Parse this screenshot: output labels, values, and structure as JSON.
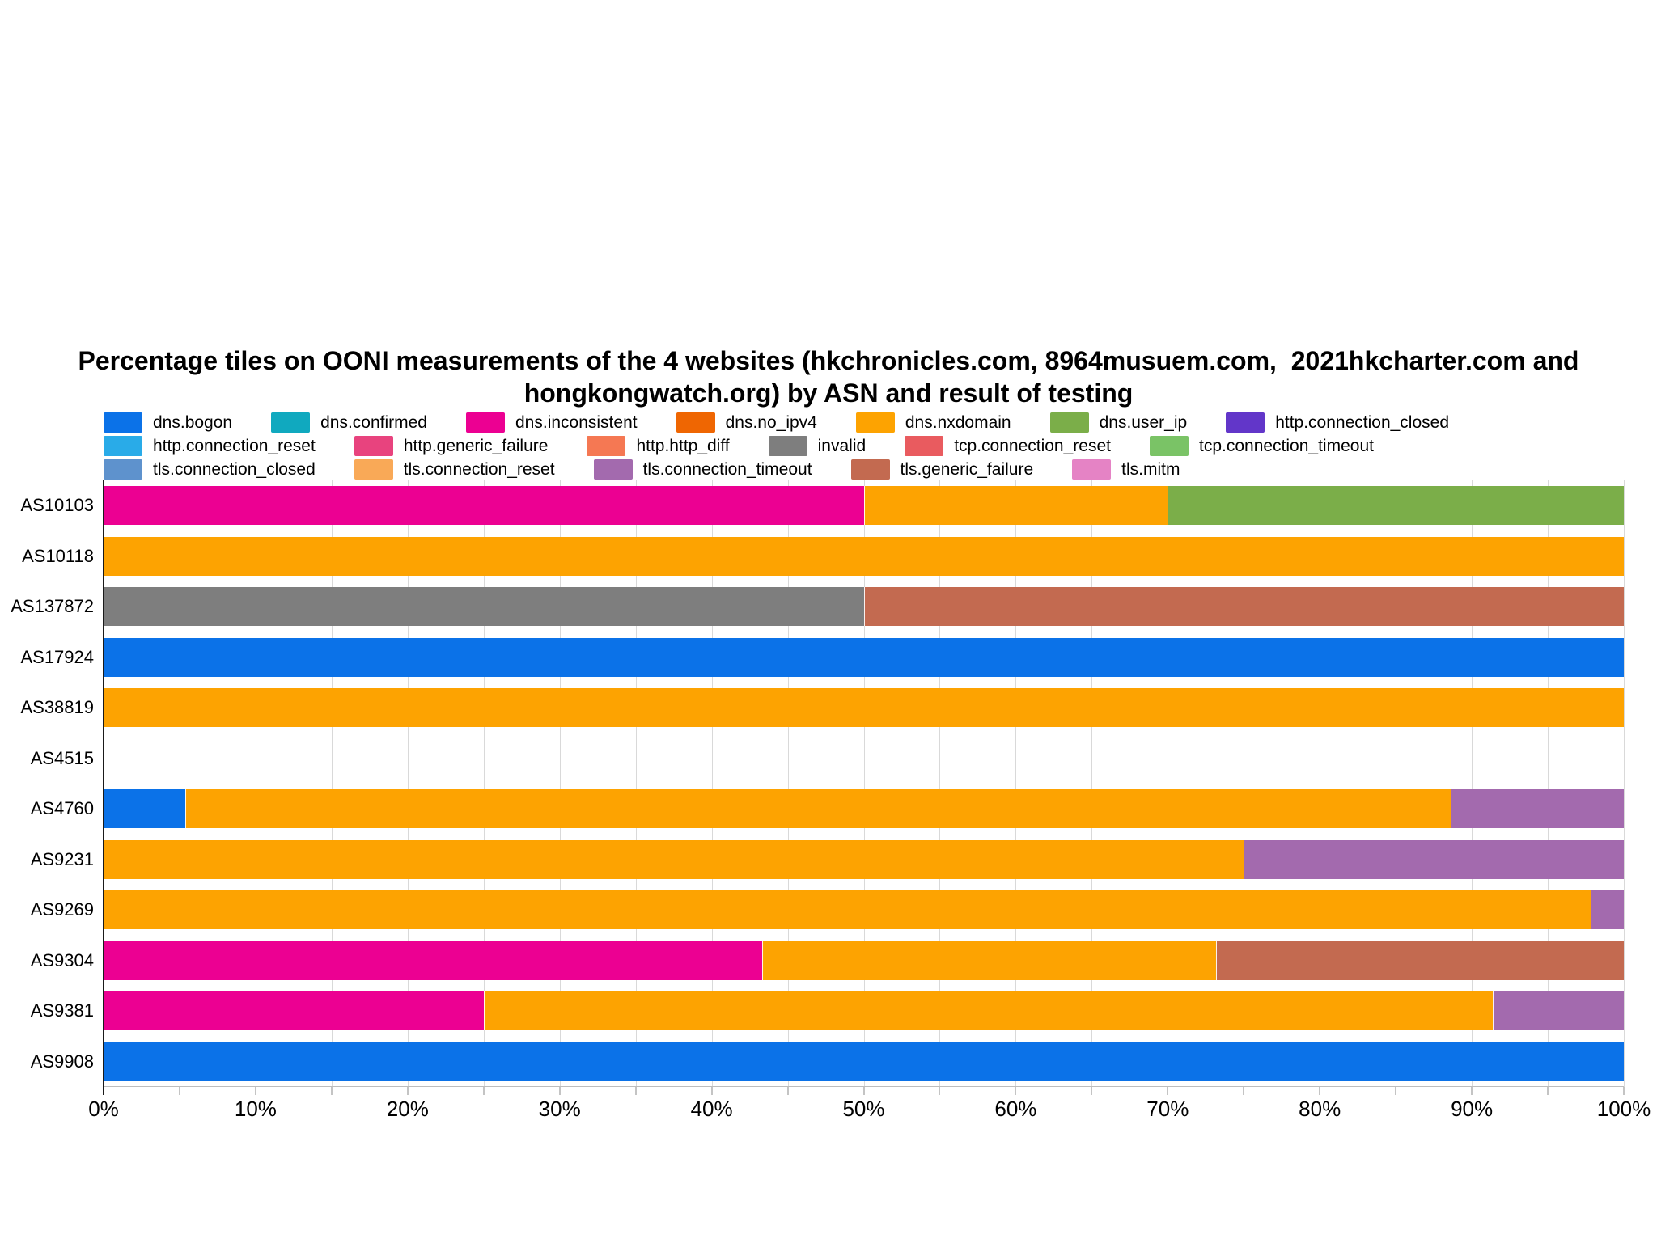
{
  "title": {
    "line1": "Percentage tiles on OONI measurements of the 4 websites (hkchronicles.com, 8964musuem.com,  2021hkcharter.com and",
    "line2": "hongkongwatch.org) by ASN and result of testing"
  },
  "chart_data": {
    "type": "bar",
    "orientation": "horizontal",
    "stacked": true,
    "unit": "percent",
    "xlim": [
      0,
      100
    ],
    "grid": true,
    "gridline_step_percent": 5,
    "x_tick_labels": [
      "0%",
      "10%",
      "20%",
      "30%",
      "40%",
      "50%",
      "60%",
      "70%",
      "80%",
      "90%",
      "100%"
    ],
    "x_tick_values": [
      0,
      10,
      20,
      30,
      40,
      50,
      60,
      70,
      80,
      90,
      100
    ],
    "legend_position": "top",
    "results": [
      {
        "key": "dns.bogon",
        "color": "#0b72e8"
      },
      {
        "key": "dns.confirmed",
        "color": "#10a9bf"
      },
      {
        "key": "dns.inconsistent",
        "color": "#ec0092"
      },
      {
        "key": "dns.no_ipv4",
        "color": "#ef6602"
      },
      {
        "key": "dns.nxdomain",
        "color": "#fda301"
      },
      {
        "key": "dns.user_ip",
        "color": "#7bae49"
      },
      {
        "key": "http.connection_closed",
        "color": "#6236c9"
      },
      {
        "key": "http.connection_reset",
        "color": "#29abe8"
      },
      {
        "key": "http.generic_failure",
        "color": "#e8437e"
      },
      {
        "key": "http.http_diff",
        "color": "#f57853"
      },
      {
        "key": "invalid",
        "color": "#7e7e7e"
      },
      {
        "key": "tcp.connection_reset",
        "color": "#e95b5f"
      },
      {
        "key": "tcp.connection_timeout",
        "color": "#7ac366"
      },
      {
        "key": "tls.connection_closed",
        "color": "#5e92cd"
      },
      {
        "key": "tls.connection_reset",
        "color": "#f9a957"
      },
      {
        "key": "tls.connection_timeout",
        "color": "#a36aae"
      },
      {
        "key": "tls.generic_failure",
        "color": "#c36a50"
      },
      {
        "key": "tls.mitm",
        "color": "#e583c5"
      }
    ],
    "legend_rows": [
      [
        "dns.bogon",
        "dns.confirmed",
        "dns.inconsistent",
        "dns.no_ipv4",
        "dns.nxdomain",
        "dns.user_ip",
        "http.connection_closed"
      ],
      [
        "http.connection_reset",
        "http.generic_failure",
        "http.http_diff",
        "invalid",
        "tcp.connection_reset",
        "tcp.connection_timeout"
      ],
      [
        "tls.connection_closed",
        "tls.connection_reset",
        "tls.connection_timeout",
        "tls.generic_failure",
        "tls.mitm"
      ]
    ],
    "categories": [
      "AS10103",
      "AS10118",
      "AS137872",
      "AS17924",
      "AS38819",
      "AS4515",
      "AS4760",
      "AS9231",
      "AS9269",
      "AS9304",
      "AS9381",
      "AS9908"
    ],
    "rows": [
      {
        "asn": "AS10103",
        "segments": [
          {
            "result": "dns.inconsistent",
            "value": 50
          },
          {
            "result": "dns.nxdomain",
            "value": 20
          },
          {
            "result": "dns.user_ip",
            "value": 30
          }
        ]
      },
      {
        "asn": "AS10118",
        "segments": [
          {
            "result": "dns.nxdomain",
            "value": 100
          }
        ]
      },
      {
        "asn": "AS137872",
        "segments": [
          {
            "result": "invalid",
            "value": 50
          },
          {
            "result": "tls.generic_failure",
            "value": 50
          }
        ]
      },
      {
        "asn": "AS17924",
        "segments": [
          {
            "result": "dns.bogon",
            "value": 100
          }
        ]
      },
      {
        "asn": "AS38819",
        "segments": [
          {
            "result": "dns.nxdomain",
            "value": 100
          }
        ]
      },
      {
        "asn": "AS4515",
        "segments": []
      },
      {
        "asn": "AS4760",
        "segments": [
          {
            "result": "dns.bogon",
            "value": 5.4
          },
          {
            "result": "dns.nxdomain",
            "value": 83.2
          },
          {
            "result": "tls.connection_timeout",
            "value": 11.4
          }
        ]
      },
      {
        "asn": "AS9231",
        "segments": [
          {
            "result": "dns.nxdomain",
            "value": 75
          },
          {
            "result": "tls.connection_timeout",
            "value": 25
          }
        ]
      },
      {
        "asn": "AS9269",
        "segments": [
          {
            "result": "dns.nxdomain",
            "value": 97.8
          },
          {
            "result": "tls.connection_timeout",
            "value": 2.2
          }
        ]
      },
      {
        "asn": "AS9304",
        "segments": [
          {
            "result": "dns.inconsistent",
            "value": 43.3
          },
          {
            "result": "dns.nxdomain",
            "value": 29.9
          },
          {
            "result": "tls.generic_failure",
            "value": 26.8
          }
        ]
      },
      {
        "asn": "AS9381",
        "segments": [
          {
            "result": "dns.inconsistent",
            "value": 25
          },
          {
            "result": "dns.nxdomain",
            "value": 66.4
          },
          {
            "result": "tls.connection_timeout",
            "value": 8.6
          }
        ]
      },
      {
        "asn": "AS9908",
        "segments": [
          {
            "result": "dns.bogon",
            "value": 100
          }
        ]
      }
    ]
  }
}
